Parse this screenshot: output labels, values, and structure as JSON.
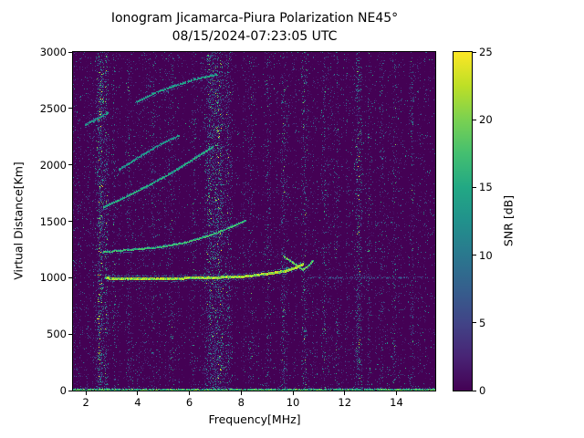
{
  "chart_data": {
    "type": "heatmap",
    "title": "Ionogram Jicamarca-Piura Polarization NE45°",
    "subtitle": "08/15/2024-07:23:05 UTC",
    "xlabel": "Frequency[MHz]",
    "ylabel": "Virtual Distance[Km]",
    "colorbar_label": "SNR [dB]",
    "colormap": "viridis",
    "xlim": [
      1.5,
      15.5
    ],
    "ylim": [
      0,
      3000
    ],
    "clim": [
      0,
      25
    ],
    "xticks": [
      2,
      4,
      6,
      8,
      10,
      12,
      14
    ],
    "yticks": [
      0,
      500,
      1000,
      1500,
      2000,
      2500,
      3000
    ],
    "colorbar_ticks": [
      0,
      5,
      10,
      15,
      20,
      25
    ],
    "background_snr_db": 0,
    "noise": {
      "density": 0.09,
      "mean_snr": 3.2
    },
    "rfi_columns": [
      {
        "freq": 2.55,
        "width": 0.1,
        "density": 0.38,
        "snr": 8
      },
      {
        "freq": 2.78,
        "width": 0.06,
        "density": 0.22,
        "snr": 6
      },
      {
        "freq": 3.1,
        "width": 0.05,
        "density": 0.12,
        "snr": 5
      },
      {
        "freq": 3.65,
        "width": 0.05,
        "density": 0.14,
        "snr": 5
      },
      {
        "freq": 4.6,
        "width": 0.05,
        "density": 0.08,
        "snr": 4
      },
      {
        "freq": 5.3,
        "width": 0.05,
        "density": 0.1,
        "snr": 5
      },
      {
        "freq": 6.15,
        "width": 0.06,
        "density": 0.12,
        "snr": 5
      },
      {
        "freq": 6.8,
        "width": 0.12,
        "density": 0.28,
        "snr": 7
      },
      {
        "freq": 7.15,
        "width": 0.15,
        "density": 0.33,
        "snr": 7
      },
      {
        "freq": 7.5,
        "width": 0.08,
        "density": 0.22,
        "snr": 6
      },
      {
        "freq": 8.4,
        "width": 0.06,
        "density": 0.14,
        "snr": 5
      },
      {
        "freq": 9.05,
        "width": 0.06,
        "density": 0.12,
        "snr": 5
      },
      {
        "freq": 9.65,
        "width": 0.06,
        "density": 0.16,
        "snr": 6
      },
      {
        "freq": 10.45,
        "width": 0.07,
        "density": 0.18,
        "snr": 6
      },
      {
        "freq": 11.2,
        "width": 0.06,
        "density": 0.14,
        "snr": 5
      },
      {
        "freq": 11.7,
        "width": 0.05,
        "density": 0.1,
        "snr": 5
      },
      {
        "freq": 12.55,
        "width": 0.08,
        "density": 0.26,
        "snr": 7
      },
      {
        "freq": 12.95,
        "width": 0.05,
        "density": 0.14,
        "snr": 5
      },
      {
        "freq": 13.45,
        "width": 0.05,
        "density": 0.1,
        "snr": 4
      },
      {
        "freq": 13.95,
        "width": 0.06,
        "density": 0.14,
        "snr": 5
      },
      {
        "freq": 14.6,
        "width": 0.06,
        "density": 0.14,
        "snr": 5
      }
    ],
    "ground_echo": {
      "range_km": 0,
      "snr": 21
    },
    "traces": [
      {
        "name": "f-region-echo",
        "snr": 24,
        "thickness": 3,
        "draw_prob": 0.92,
        "points": [
          [
            2.75,
            1000
          ],
          [
            3.5,
            992
          ],
          [
            5.0,
            995
          ],
          [
            6.5,
            1002
          ],
          [
            8.0,
            1012
          ],
          [
            9.0,
            1038
          ],
          [
            9.7,
            1062
          ],
          [
            10.1,
            1092
          ],
          [
            10.4,
            1125
          ]
        ]
      },
      {
        "name": "cusp-echo",
        "snr": 21,
        "thickness": 2,
        "draw_prob": 0.85,
        "points": [
          [
            9.62,
            1190
          ],
          [
            10.0,
            1130
          ],
          [
            10.37,
            1068
          ],
          [
            10.6,
            1105
          ],
          [
            10.76,
            1150
          ]
        ]
      },
      {
        "name": "second-echo",
        "snr": 19,
        "thickness": 2,
        "draw_prob": 0.85,
        "points": [
          [
            2.65,
            1225
          ],
          [
            3.6,
            1245
          ],
          [
            4.8,
            1268
          ],
          [
            5.8,
            1308
          ],
          [
            6.7,
            1368
          ],
          [
            7.5,
            1438
          ],
          [
            8.15,
            1505
          ]
        ]
      },
      {
        "name": "third-echo",
        "snr": 17,
        "thickness": 2,
        "draw_prob": 0.8,
        "points": [
          [
            2.65,
            1620
          ],
          [
            3.6,
            1722
          ],
          [
            4.5,
            1828
          ],
          [
            5.4,
            1942
          ],
          [
            6.2,
            2058
          ],
          [
            6.9,
            2160
          ]
        ]
      },
      {
        "name": "fourth-echo",
        "snr": 15,
        "thickness": 2,
        "draw_prob": 0.72,
        "points": [
          [
            3.25,
            1955
          ],
          [
            4.1,
            2075
          ],
          [
            4.9,
            2185
          ],
          [
            5.6,
            2260
          ]
        ]
      },
      {
        "name": "upper-left-echo",
        "snr": 15,
        "thickness": 2,
        "draw_prob": 0.75,
        "points": [
          [
            1.95,
            2350
          ],
          [
            2.4,
            2405
          ],
          [
            2.85,
            2460
          ]
        ]
      },
      {
        "name": "top-echo",
        "snr": 16,
        "thickness": 2,
        "draw_prob": 0.72,
        "points": [
          [
            3.9,
            2548
          ],
          [
            4.6,
            2632
          ],
          [
            5.4,
            2698
          ],
          [
            6.2,
            2756
          ],
          [
            7.05,
            2800
          ]
        ]
      },
      {
        "name": "range-1000-scatter",
        "snr": 9,
        "thickness": 1,
        "draw_prob": 0.2,
        "points": [
          [
            10.6,
            1005
          ],
          [
            15.3,
            1005
          ]
        ]
      }
    ]
  }
}
